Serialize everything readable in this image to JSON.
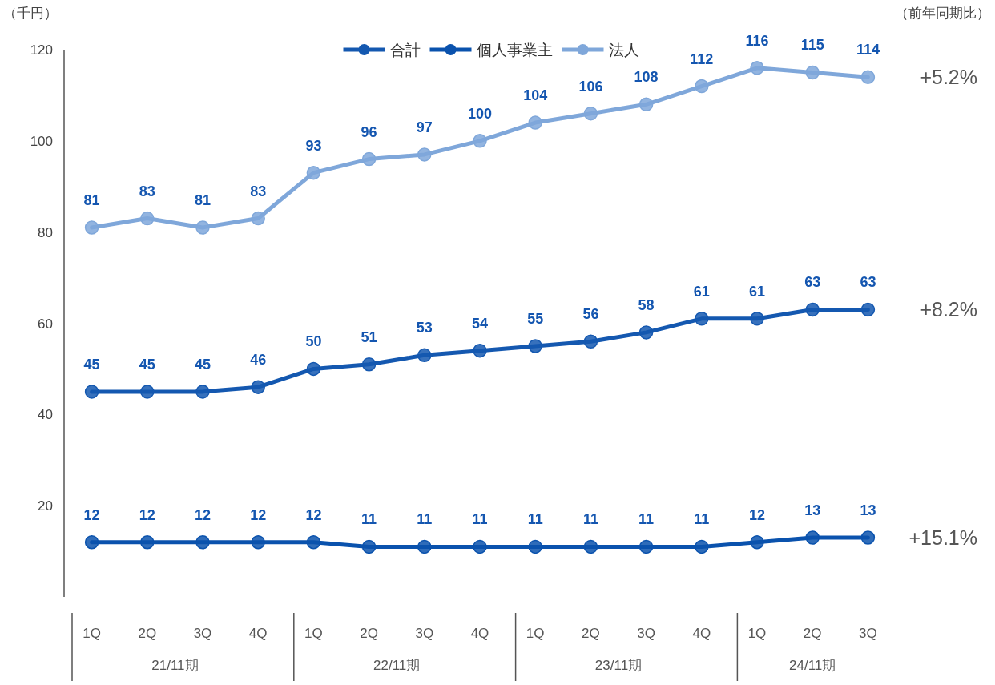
{
  "chart_data": {
    "type": "line",
    "ylabel": "（千円）",
    "categories": [
      "1Q",
      "2Q",
      "3Q",
      "4Q",
      "1Q",
      "2Q",
      "3Q",
      "4Q",
      "1Q",
      "2Q",
      "3Q",
      "4Q",
      "1Q",
      "2Q",
      "3Q"
    ],
    "series": [
      {
        "name": "合計",
        "color": "#1458b0",
        "values": [
          45,
          45,
          45,
          46,
          50,
          51,
          53,
          54,
          55,
          56,
          58,
          61,
          61,
          63,
          63
        ]
      },
      {
        "name": "個人事業主",
        "color": "#0a52ad",
        "values": [
          12,
          12,
          12,
          12,
          12,
          11,
          11,
          11,
          11,
          11,
          11,
          11,
          12,
          13,
          13
        ]
      },
      {
        "name": "法人",
        "color": "#7fa7da",
        "values": [
          81,
          83,
          81,
          83,
          93,
          96,
          97,
          100,
          104,
          106,
          108,
          112,
          116,
          115,
          114
        ]
      }
    ],
    "ylim": [
      0,
      120
    ],
    "yticks": [
      20,
      40,
      60,
      80,
      100,
      120
    ],
    "data_labels": true,
    "legend": "top",
    "marker": "circle",
    "line_style": "solid",
    "grid": false,
    "annotations": [
      "（前年同期比）",
      "21/11期",
      "22/11期",
      "23/11期",
      "24/11期",
      "+8.2%",
      "+15.1%",
      "+5.2%"
    ]
  }
}
